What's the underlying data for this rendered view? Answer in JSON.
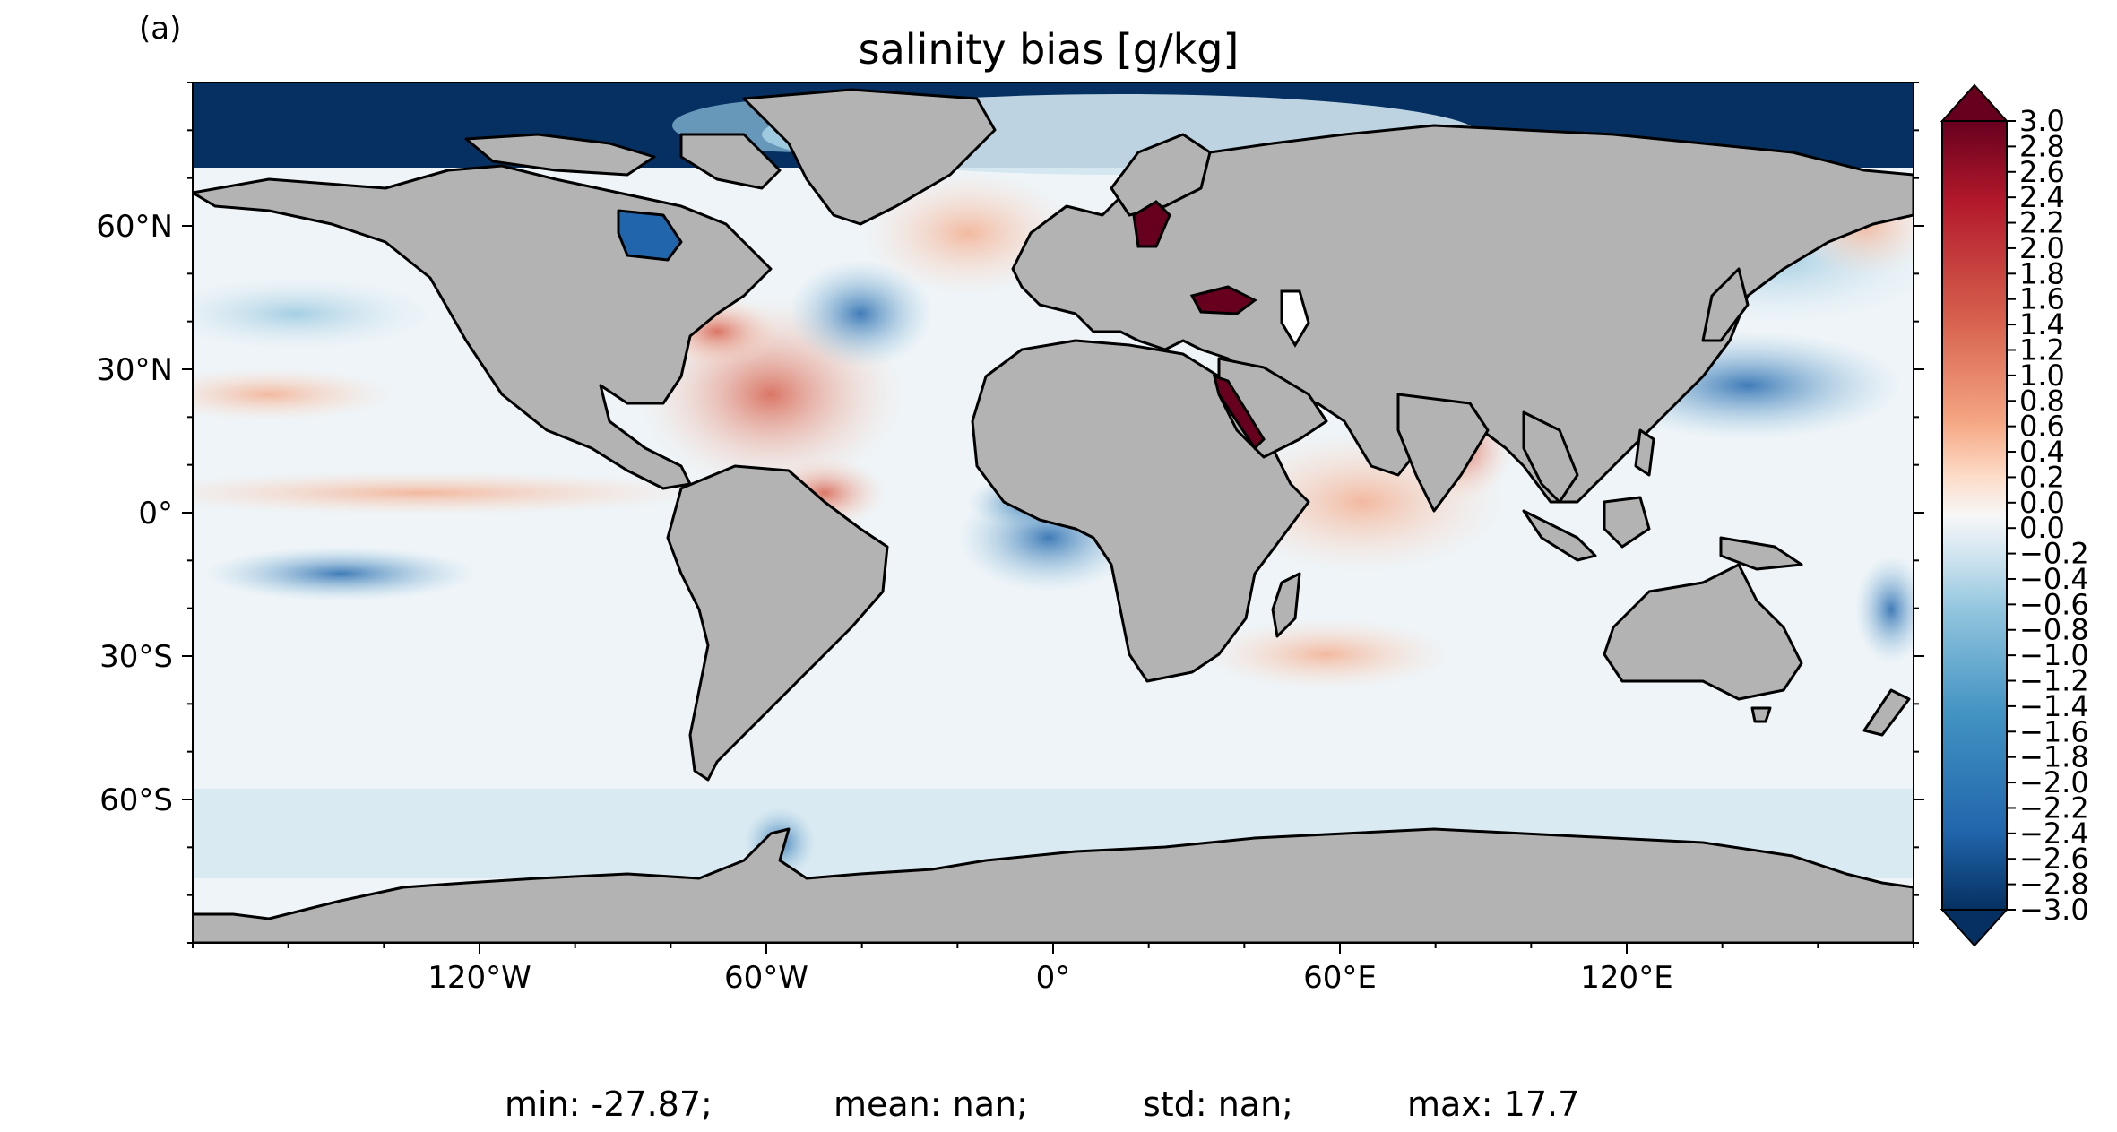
{
  "panel_label": "(a)",
  "title": "salinity bias [g/kg]",
  "map": {
    "projection": "PlateCarree",
    "lon_range": [
      -180,
      180
    ],
    "lat_range": [
      -90,
      90
    ],
    "land_color": "#b3b3b3",
    "coastline_color": "#000000",
    "lon_ticks": [
      {
        "lon": -120,
        "label": "120°W"
      },
      {
        "lon": -60,
        "label": "60°W"
      },
      {
        "lon": 0,
        "label": "0°"
      },
      {
        "lon": 60,
        "label": "60°E"
      },
      {
        "lon": 120,
        "label": "120°E"
      }
    ],
    "lat_ticks": [
      {
        "lat": 60,
        "label": "60°N"
      },
      {
        "lat": 30,
        "label": "30°N"
      },
      {
        "lat": 0,
        "label": "0°"
      },
      {
        "lat": -30,
        "label": "30°S"
      },
      {
        "lat": -60,
        "label": "60°S"
      }
    ]
  },
  "colorbar": {
    "cmap": "RdBu_r",
    "vmin": -3.0,
    "vmax": 3.0,
    "extend": "both",
    "low_color": "#053061",
    "mid_color": "#f7f7f7",
    "high_color": "#67001f",
    "tick_labels": [
      "3.0",
      "2.8",
      "2.6",
      "2.4",
      "2.2",
      "2.0",
      "1.8",
      "1.6",
      "1.4",
      "1.2",
      "1.0",
      "0.8",
      "0.6",
      "0.4",
      "0.2",
      "0.0",
      "0.0",
      "−0.2",
      "−0.4",
      "−0.6",
      "−0.8",
      "−1.0",
      "−1.2",
      "−1.4",
      "−1.6",
      "−1.8",
      "−2.0",
      "−2.2",
      "−2.4",
      "−2.6",
      "−2.8",
      "−3.0"
    ]
  },
  "stats": {
    "min": "min: -27.87;",
    "mean": "mean: nan;",
    "std": "std: nan;",
    "max": "max: 17.7"
  }
}
